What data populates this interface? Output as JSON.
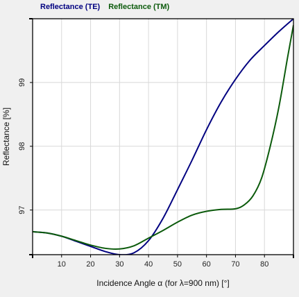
{
  "chart_data": {
    "type": "line",
    "title": "",
    "xlabel": "Incidence Angle α (for λ=900 nm) [°]",
    "ylabel": "Reflectance [%]",
    "xlim": [
      0,
      90
    ],
    "ylim": [
      96.3,
      100.0
    ],
    "x_ticks": [
      10,
      20,
      30,
      40,
      50,
      60,
      70,
      80
    ],
    "y_ticks": [
      97,
      98,
      99
    ],
    "grid": true,
    "legend_position": "top-left",
    "series": [
      {
        "name": "Reflectance (TE)",
        "color": "#000080",
        "x": [
          0,
          5,
          10,
          15,
          20,
          25,
          30,
          35,
          40,
          45,
          50,
          55,
          60,
          65,
          70,
          75,
          80,
          85,
          90
        ],
        "y": [
          96.66,
          96.64,
          96.59,
          96.51,
          96.43,
          96.35,
          96.3,
          96.33,
          96.52,
          96.87,
          97.32,
          97.78,
          98.26,
          98.69,
          99.05,
          99.35,
          99.58,
          99.8,
          100.0
        ]
      },
      {
        "name": "Reflectance (TM)",
        "color": "#0b5a0b",
        "x": [
          0,
          5,
          10,
          15,
          20,
          25,
          30,
          35,
          40,
          45,
          50,
          55,
          60,
          65,
          70,
          73,
          76,
          79,
          82,
          85,
          88,
          90
        ],
        "y": [
          96.66,
          96.64,
          96.59,
          96.52,
          96.45,
          96.4,
          96.39,
          96.44,
          96.56,
          96.68,
          96.81,
          96.92,
          96.98,
          97.01,
          97.02,
          97.08,
          97.22,
          97.5,
          98.0,
          98.62,
          99.4,
          99.9
        ]
      }
    ]
  }
}
